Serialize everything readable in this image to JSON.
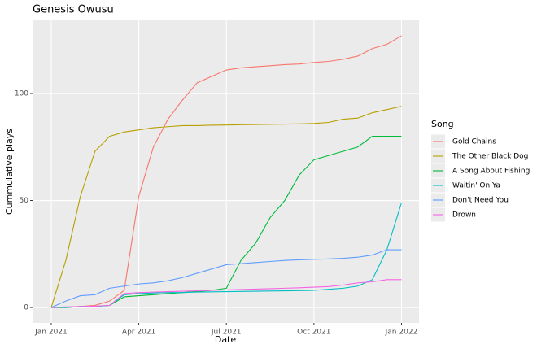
{
  "chart_data": {
    "type": "line",
    "title": "Genesis Owusu",
    "x_label": "Date",
    "y_label": "Cummulative plays",
    "legend_title": "Song",
    "x": [
      0,
      0.5,
      1,
      1.5,
      2,
      2.5,
      3,
      3.5,
      4,
      4.5,
      5,
      5.5,
      6,
      6.5,
      7,
      7.5,
      8,
      8.5,
      9,
      9.5,
      10,
      10.5,
      11,
      11.5,
      12
    ],
    "series": [
      {
        "name": "Gold Chains",
        "color": "#F8766D",
        "values": [
          0,
          0,
          0.5,
          1,
          3,
          8,
          52,
          75,
          88,
          97,
          105,
          108,
          111,
          112,
          112.5,
          113,
          113.5,
          113.8,
          114.5,
          115,
          116,
          117.5,
          121,
          123,
          127
        ]
      },
      {
        "name": "The Other Black Dog",
        "color": "#B79F00",
        "values": [
          0,
          22,
          52,
          73,
          80,
          82,
          83,
          84,
          84.5,
          85,
          85,
          85.2,
          85.3,
          85.4,
          85.5,
          85.6,
          85.7,
          85.8,
          86,
          86.5,
          88,
          88.5,
          91,
          92.5,
          94
        ]
      },
      {
        "name": "A Song About Fishing",
        "color": "#00BA38",
        "values": [
          0,
          0,
          0.5,
          0.5,
          1,
          5,
          5.5,
          6,
          6.5,
          7,
          7.5,
          8,
          9,
          22,
          30,
          42,
          50,
          62,
          69,
          71,
          73,
          75,
          80,
          80,
          80
        ]
      },
      {
        "name": "Waitin' On Ya",
        "color": "#00BFC4",
        "values": [
          0,
          0,
          0.5,
          0.5,
          1,
          6,
          6.5,
          6.8,
          7,
          7,
          7.2,
          7.3,
          7.4,
          7.5,
          7.6,
          7.7,
          7.8,
          7.9,
          8,
          8.5,
          9,
          10,
          13,
          27,
          49
        ]
      },
      {
        "name": "Don't Need You",
        "color": "#619CFF",
        "values": [
          0,
          3,
          5.5,
          6,
          9,
          10,
          11,
          11.5,
          12.5,
          14,
          16,
          18,
          20,
          20.5,
          21,
          21.5,
          22,
          22.3,
          22.5,
          22.7,
          23,
          23.5,
          24.5,
          27,
          27
        ]
      },
      {
        "name": "Drown",
        "color": "#F564E3",
        "values": [
          0,
          0.3,
          0.5,
          0.6,
          1,
          6.5,
          7,
          7.2,
          7.4,
          7.6,
          7.8,
          8,
          8.2,
          8.4,
          8.6,
          8.8,
          9,
          9.2,
          9.5,
          9.8,
          10.5,
          11.5,
          12,
          13,
          13
        ]
      }
    ],
    "xlim": [
      -0.64,
      12.6
    ],
    "ylim": [
      -7.2,
      134.2
    ],
    "xticks": [
      {
        "value": 0,
        "label": "Jan 2021"
      },
      {
        "value": 3,
        "label": "Apr 2021"
      },
      {
        "value": 6,
        "label": "Jul 2021"
      },
      {
        "value": 9,
        "label": "Oct 2021"
      },
      {
        "value": 12,
        "label": "Jan 2022"
      }
    ],
    "yticks": [
      0,
      50,
      100
    ],
    "grid": true
  }
}
